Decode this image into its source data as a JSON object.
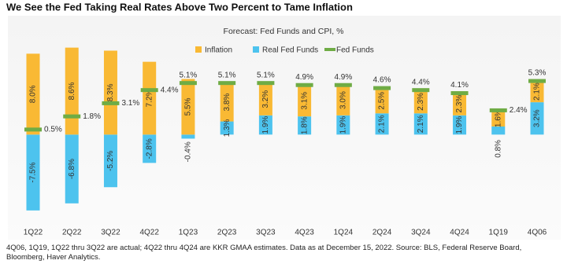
{
  "chart_data": {
    "type": "bar",
    "title": "We See the Fed Taking Real Rates Above Two Percent to Tame Inflation",
    "subtitle": "Forecast: Fed Funds and CPI, %",
    "footnote": "4Q06, 1Q19, 1Q22 thru 3Q22 are actual; 4Q22 thru 4Q24 are KKR GMAA estimates. Data as at December 15, 2022. Source: BLS, Federal Reserve Board, Bloomberg, Haver Analytics.",
    "categories": [
      "1Q22",
      "2Q22",
      "3Q22",
      "4Q22",
      "1Q23",
      "2Q23",
      "3Q23",
      "4Q23",
      "1Q24",
      "2Q24",
      "3Q24",
      "4Q24",
      "1Q19",
      "4Q06"
    ],
    "ylim": [
      -8.6,
      11.6
    ],
    "series": [
      {
        "name": "Inflation",
        "color": "#f9b934",
        "kind": "bar",
        "values": [
          8.0,
          8.6,
          8.3,
          7.2,
          5.5,
          3.8,
          3.2,
          3.1,
          3.0,
          2.5,
          2.3,
          2.3,
          1.6,
          2.1
        ],
        "value_labels": [
          "8.0%",
          "8.6%",
          "8.3%",
          "7.2%",
          "5.5%",
          "3.8%",
          "3.2%",
          "3.1%",
          "3.0%",
          "2.5%",
          "2.3%",
          "2.3%",
          "1.6%",
          "2.1%"
        ]
      },
      {
        "name": "Real Fed Funds",
        "color": "#4dc3ee",
        "kind": "bar",
        "values": [
          -7.5,
          -6.8,
          -5.2,
          -2.8,
          -0.4,
          1.3,
          1.9,
          1.8,
          1.9,
          2.1,
          2.1,
          1.9,
          0.8,
          3.2
        ],
        "value_labels": [
          "-7.5%",
          "-6.8%",
          "-5.2%",
          "-2.8%",
          "-0.4%",
          "1.3%",
          "1.9%",
          "1.8%",
          "1.9%",
          "2.1%",
          "2.1%",
          "1.9%",
          "0.8%",
          "3.2%"
        ]
      },
      {
        "name": "Fed Funds",
        "color": "#6fac45",
        "kind": "marker",
        "values": [
          0.5,
          1.8,
          3.1,
          4.4,
          5.1,
          5.1,
          5.1,
          4.9,
          4.9,
          4.6,
          4.4,
          4.1,
          2.4,
          5.3
        ],
        "value_labels": [
          "0.5%",
          "1.8%",
          "3.1%",
          "4.4%",
          "5.1%",
          "5.1%",
          "5.1%",
          "4.9%",
          "4.9%",
          "4.6%",
          "4.4%",
          "4.1%",
          "2.4%",
          "5.3%"
        ]
      }
    ]
  }
}
